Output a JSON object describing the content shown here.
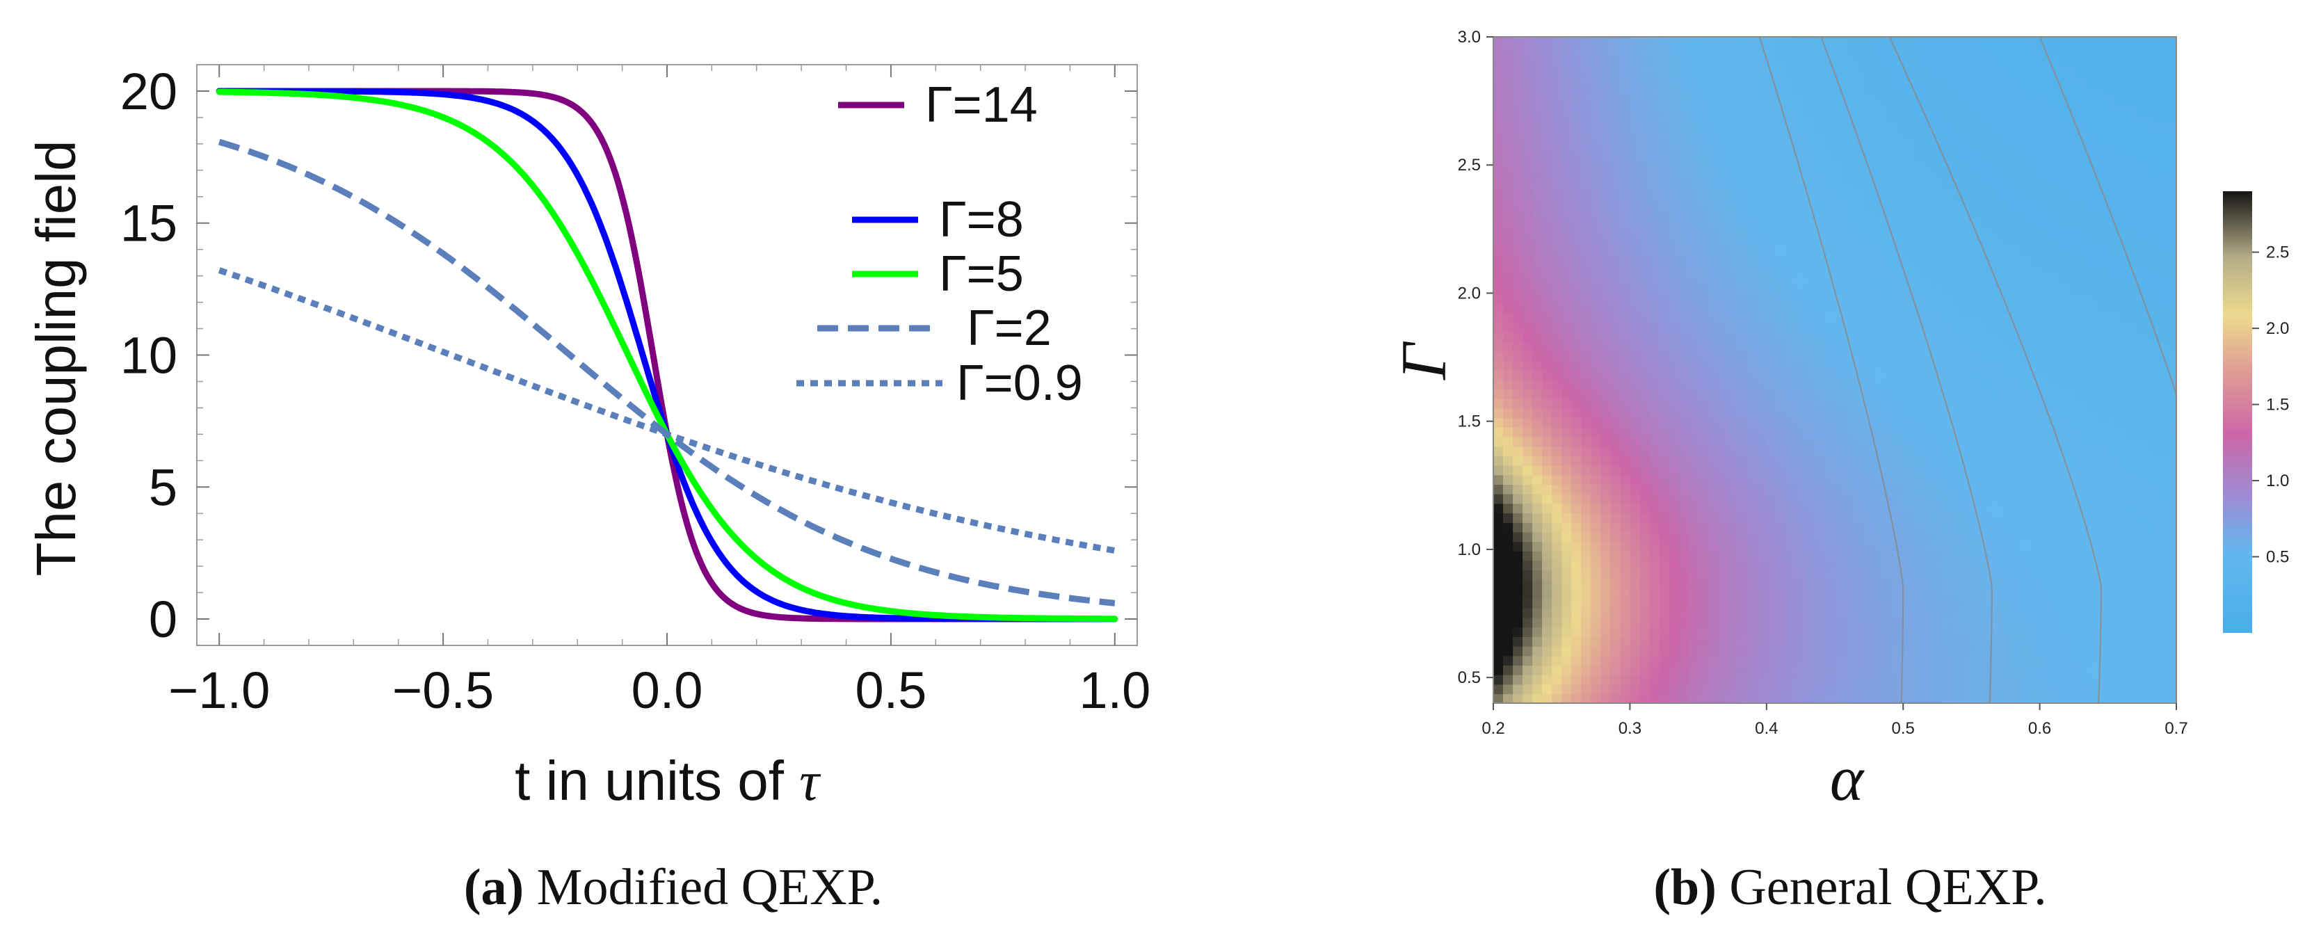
{
  "chart_data": [
    {
      "id": "a",
      "type": "line",
      "xlabel_prefix": "t in units of ",
      "xlabel_symbol": "τ",
      "ylabel": "The coupling field",
      "xlim": [
        -1.05,
        1.05
      ],
      "ylim": [
        -1,
        21
      ],
      "xticks": [
        -1.0,
        -0.5,
        0.0,
        0.5,
        1.0
      ],
      "xtick_labels": [
        "−1.0",
        "−0.5",
        "0.0",
        "0.5",
        "1.0"
      ],
      "yticks": [
        0,
        5,
        10,
        15,
        20
      ],
      "ytick_labels": [
        "0",
        "5",
        "10",
        "15",
        "20"
      ],
      "grid": false,
      "formula": "20 / (1 + exp(Gamma * t / 0.7) * (20/7 - 1))",
      "series": [
        {
          "name": "Γ=14",
          "gamma": 14,
          "color": "#800080",
          "style": "solid"
        },
        {
          "name": "Γ=8",
          "gamma": 8,
          "color": "#0000ff",
          "style": "solid"
        },
        {
          "name": "Γ=5",
          "gamma": 5,
          "color": "#00ff00",
          "style": "solid"
        },
        {
          "name": "Γ=2",
          "gamma": 2,
          "color": "#5b7fbb",
          "style": "dashed"
        },
        {
          "name": "Γ=0.9",
          "gamma": 0.9,
          "color": "#5b7fbb",
          "style": "dotted"
        }
      ],
      "legend_placement": "top-right"
    },
    {
      "id": "b",
      "type": "heatmap",
      "xlabel": "α",
      "ylabel": "Γ",
      "xlim": [
        0.2,
        0.7
      ],
      "ylim": [
        0.4,
        3.0
      ],
      "xticks": [
        0.2,
        0.3,
        0.4,
        0.5,
        0.6,
        0.7
      ],
      "xtick_labels": [
        "0.2",
        "0.3",
        "0.4",
        "0.5",
        "0.6",
        "0.7"
      ],
      "yticks": [
        0.5,
        1.0,
        1.5,
        2.0,
        2.5,
        3.0
      ],
      "ytick_labels": [
        "0.5",
        "1.0",
        "1.5",
        "2.0",
        "2.5",
        "3.0"
      ],
      "colorbar_range": [
        0,
        2.9
      ],
      "colorbar_ticks": [
        0.5,
        1.0,
        1.5,
        2.0,
        2.5
      ],
      "colorbar_tick_labels": [
        "0.5",
        "1.0",
        "1.5",
        "2.0",
        "2.5"
      ],
      "colormap": [
        [
          0.0,
          "#4aaee8"
        ],
        [
          0.18,
          "#62b8ee"
        ],
        [
          0.3,
          "#9a8ed6"
        ],
        [
          0.45,
          "#cc66a8"
        ],
        [
          0.6,
          "#e0a095"
        ],
        [
          0.72,
          "#edd98e"
        ],
        [
          0.85,
          "#b5ad88"
        ],
        [
          1.0,
          "#151515"
        ]
      ],
      "field_model": "value decreases with alpha, peaks near Gamma 0.85 at alpha 0.2 (max ~2.9)",
      "contour_levels": [
        0.42,
        0.56,
        0.72,
        0.92
      ],
      "contour_color": "#8a8a8a"
    }
  ],
  "captions": {
    "a_letter": "(a)",
    "a_text": " Modified QEXP.",
    "b_letter": "(b)",
    "b_text": " General QEXP."
  }
}
